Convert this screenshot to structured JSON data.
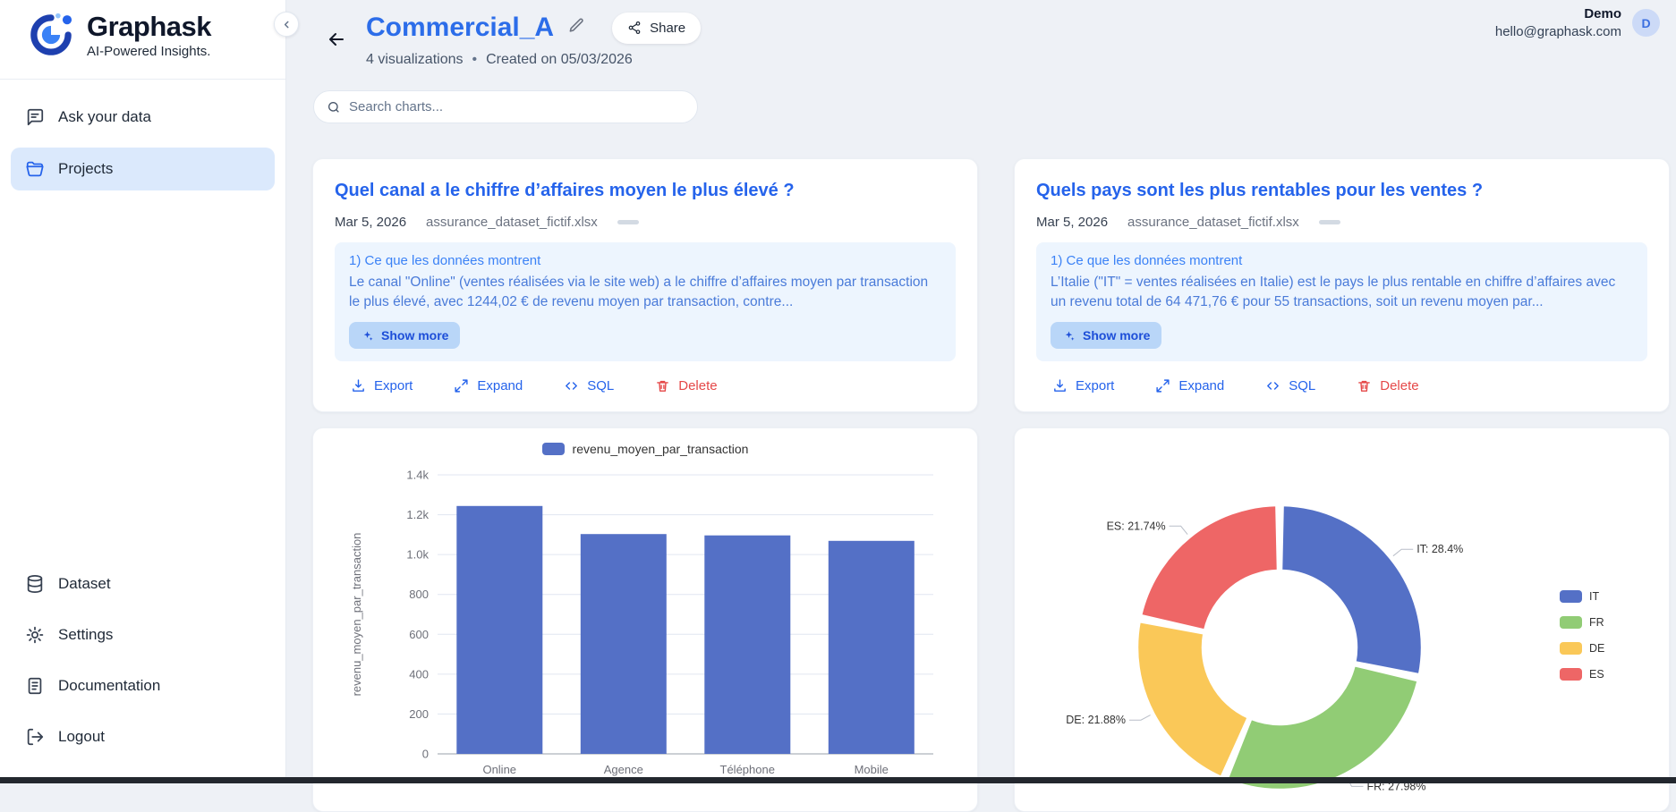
{
  "app": {
    "brand": "Graphask",
    "tagline": "AI-Powered Insights."
  },
  "colors": {
    "accent_blue": "#2563eb",
    "title_blue": "#2c6de9",
    "insight_bg": "#edf5fe",
    "delete_red": "#e54848",
    "active_item_bg": "#dbe9fc"
  },
  "icons": {
    "collapse": "chevron-left-icon",
    "ask_your_data": "chat-bubble-icon",
    "projects": "folder-icon",
    "dataset": "database-icon",
    "settings": "gear-icon",
    "documentation": "document-icon",
    "logout": "logout-icon",
    "back": "arrow-left-icon",
    "edit": "pencil-icon",
    "share": "share-nodes-icon",
    "search": "magnifier-icon",
    "export": "download-icon",
    "expand": "arrows-diagonal-icon",
    "sql": "code-brackets-icon",
    "delete": "trash-icon",
    "show_more": "sparkles-icon"
  },
  "sidebar": {
    "items": [
      {
        "label": "Ask your data"
      },
      {
        "label": "Projects"
      }
    ],
    "bottom_items": [
      {
        "label": "Dataset"
      },
      {
        "label": "Settings"
      },
      {
        "label": "Documentation"
      },
      {
        "label": "Logout"
      }
    ]
  },
  "header": {
    "title": "Commercial_A",
    "share_label": "Share",
    "meta": "4 visualizations",
    "meta_separator": "•",
    "created": "Created on 05/03/2026",
    "user_name": "Demo",
    "user_email": "hello@graphask.com",
    "avatar_initial": "D"
  },
  "search": {
    "placeholder": "Search charts..."
  },
  "cards": [
    {
      "title": "Quel canal a le chiffre d’affaires moyen le plus élevé ?",
      "date": "Mar 5, 2026",
      "dataset": "assurance_dataset_fictif.xlsx",
      "insight_heading": "1) Ce que les données montrent",
      "insight_body": "Le canal \"Online\" (ventes réalisées via le site web) a le chiffre d’affaires moyen par transaction le plus élevé, avec 1244,02 € de revenu moyen par transaction, contre...",
      "show_more": "Show more",
      "actions": {
        "export": "Export",
        "expand": "Expand",
        "sql": "SQL",
        "delete": "Delete"
      }
    },
    {
      "title": "Quels pays sont les plus rentables pour les ventes ?",
      "date": "Mar 5, 2026",
      "dataset": "assurance_dataset_fictif.xlsx",
      "insight_heading": "1) Ce que les données montrent",
      "insight_body": "L’Italie (\"IT\" = ventes réalisées en Italie) est le pays le plus rentable en chiffre d’affaires avec un revenu total de 64 471,76 € pour 55 transactions, soit un revenu moyen par...",
      "show_more": "Show more",
      "actions": {
        "export": "Export",
        "expand": "Expand",
        "sql": "SQL",
        "delete": "Delete"
      }
    }
  ],
  "chart_data": [
    {
      "type": "bar",
      "legend": [
        "revenu_moyen_par_transaction"
      ],
      "categories": [
        "Online",
        "Agence",
        "Téléphone",
        "Mobile"
      ],
      "values": [
        1244.02,
        1103,
        1096,
        1069
      ],
      "xlabel": "",
      "ylabel": "revenu_moyen_par_transaction",
      "ylim": [
        0,
        1400
      ],
      "yticks": [
        0,
        200,
        400,
        600,
        800,
        1000,
        1200,
        1400
      ],
      "ytick_labels": [
        "0",
        "200",
        "400",
        "600",
        "800",
        "1.0k",
        "1.2k",
        "1.4k"
      ],
      "bar_color": "#5470c6",
      "grid": true,
      "legend_position": "top"
    },
    {
      "type": "pie",
      "donut": true,
      "labels": [
        "IT",
        "FR",
        "DE",
        "ES"
      ],
      "values": [
        28.4,
        27.98,
        21.88,
        21.74
      ],
      "slice_labels": [
        "IT: 28.4%",
        "FR: 27.98%",
        "DE: 21.88%",
        "ES: 21.74%"
      ],
      "colors": [
        "#5470c6",
        "#91cc75",
        "#fac858",
        "#ee6666"
      ],
      "legend": [
        "IT",
        "FR",
        "DE",
        "ES"
      ],
      "legend_position": "right"
    }
  ]
}
